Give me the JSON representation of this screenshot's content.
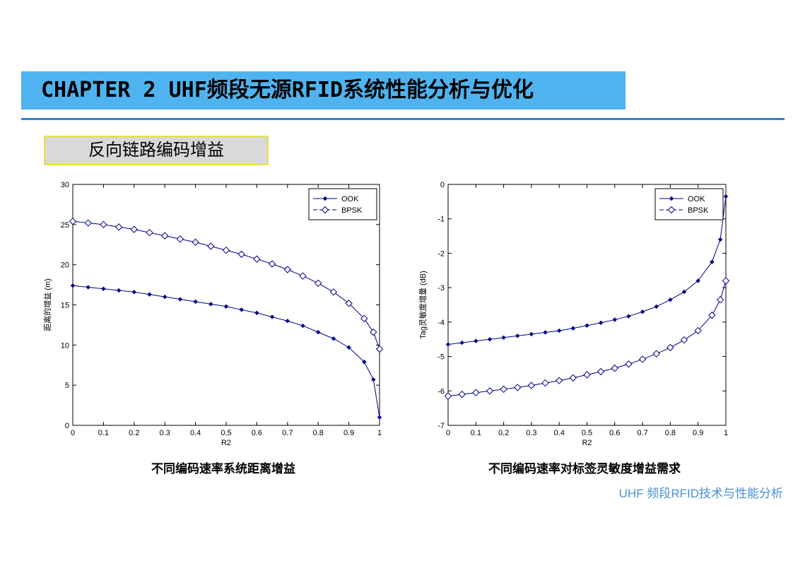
{
  "header": {
    "title": "CHAPTER 2 UHF频段无源RFID系统性能分析与优化"
  },
  "section_label": "反向链路编码增益",
  "footer": "UHF 频段RFID技术与性能分析",
  "chart_data": [
    {
      "type": "line",
      "caption": "不同编码速率系统距离增益",
      "x_label": "R2",
      "y_label": "距离的增益 (m)",
      "x": [
        0,
        0.05,
        0.1,
        0.15,
        0.2,
        0.25,
        0.3,
        0.35,
        0.4,
        0.45,
        0.5,
        0.55,
        0.6,
        0.65,
        0.7,
        0.75,
        0.8,
        0.85,
        0.9,
        0.95,
        0.98,
        1
      ],
      "series": [
        {
          "name": "OOK",
          "color": "#00008b",
          "marker": "filled-diamond",
          "values": [
            17.4,
            17.2,
            17.0,
            16.8,
            16.6,
            16.3,
            16.0,
            15.7,
            15.4,
            15.1,
            14.8,
            14.4,
            14.0,
            13.5,
            13.0,
            12.4,
            11.6,
            10.8,
            9.7,
            7.9,
            5.7,
            1.0
          ]
        },
        {
          "name": "BPSK",
          "color": "#00008b",
          "marker": "open-diamond",
          "values": [
            25.4,
            25.2,
            25.0,
            24.7,
            24.4,
            24.0,
            23.6,
            23.2,
            22.8,
            22.3,
            21.8,
            21.3,
            20.7,
            20.1,
            19.4,
            18.6,
            17.7,
            16.6,
            15.2,
            13.3,
            11.6,
            9.5
          ]
        }
      ],
      "xlim": [
        0,
        1
      ],
      "xticks": [
        0,
        0.1,
        0.2,
        0.3,
        0.4,
        0.5,
        0.6,
        0.7,
        0.8,
        0.9,
        1
      ],
      "ylim": [
        0,
        30
      ],
      "yticks": [
        0,
        5,
        10,
        15,
        20,
        25,
        30
      ],
      "legend": "north-east"
    },
    {
      "type": "line",
      "caption": "不同编码速率对标签灵敏度增益需求",
      "x_label": "R2",
      "y_label": "Tag灵敏度增量 (dB)",
      "x": [
        0,
        0.05,
        0.1,
        0.15,
        0.2,
        0.25,
        0.3,
        0.35,
        0.4,
        0.45,
        0.5,
        0.55,
        0.6,
        0.65,
        0.7,
        0.75,
        0.8,
        0.85,
        0.9,
        0.95,
        0.98,
        1
      ],
      "series": [
        {
          "name": "OOK",
          "color": "#00008b",
          "marker": "filled-diamond",
          "values": [
            -4.65,
            -4.6,
            -4.55,
            -4.5,
            -4.45,
            -4.4,
            -4.35,
            -4.3,
            -4.25,
            -4.18,
            -4.1,
            -4.02,
            -3.93,
            -3.83,
            -3.7,
            -3.55,
            -3.35,
            -3.12,
            -2.8,
            -2.25,
            -1.6,
            -0.35
          ]
        },
        {
          "name": "BPSK",
          "color": "#00008b",
          "marker": "open-diamond",
          "values": [
            -6.15,
            -6.1,
            -6.05,
            -6.0,
            -5.95,
            -5.9,
            -5.84,
            -5.77,
            -5.7,
            -5.62,
            -5.53,
            -5.44,
            -5.34,
            -5.22,
            -5.08,
            -4.92,
            -4.74,
            -4.52,
            -4.25,
            -3.8,
            -3.35,
            -2.8
          ]
        }
      ],
      "xlim": [
        0,
        1
      ],
      "xticks": [
        0,
        0.1,
        0.2,
        0.3,
        0.4,
        0.5,
        0.6,
        0.7,
        0.8,
        0.9,
        1
      ],
      "ylim": [
        -7,
        0
      ],
      "yticks": [
        -7,
        -6,
        -5,
        -4,
        -3,
        -2,
        -1,
        0
      ],
      "legend": "north-east"
    }
  ]
}
